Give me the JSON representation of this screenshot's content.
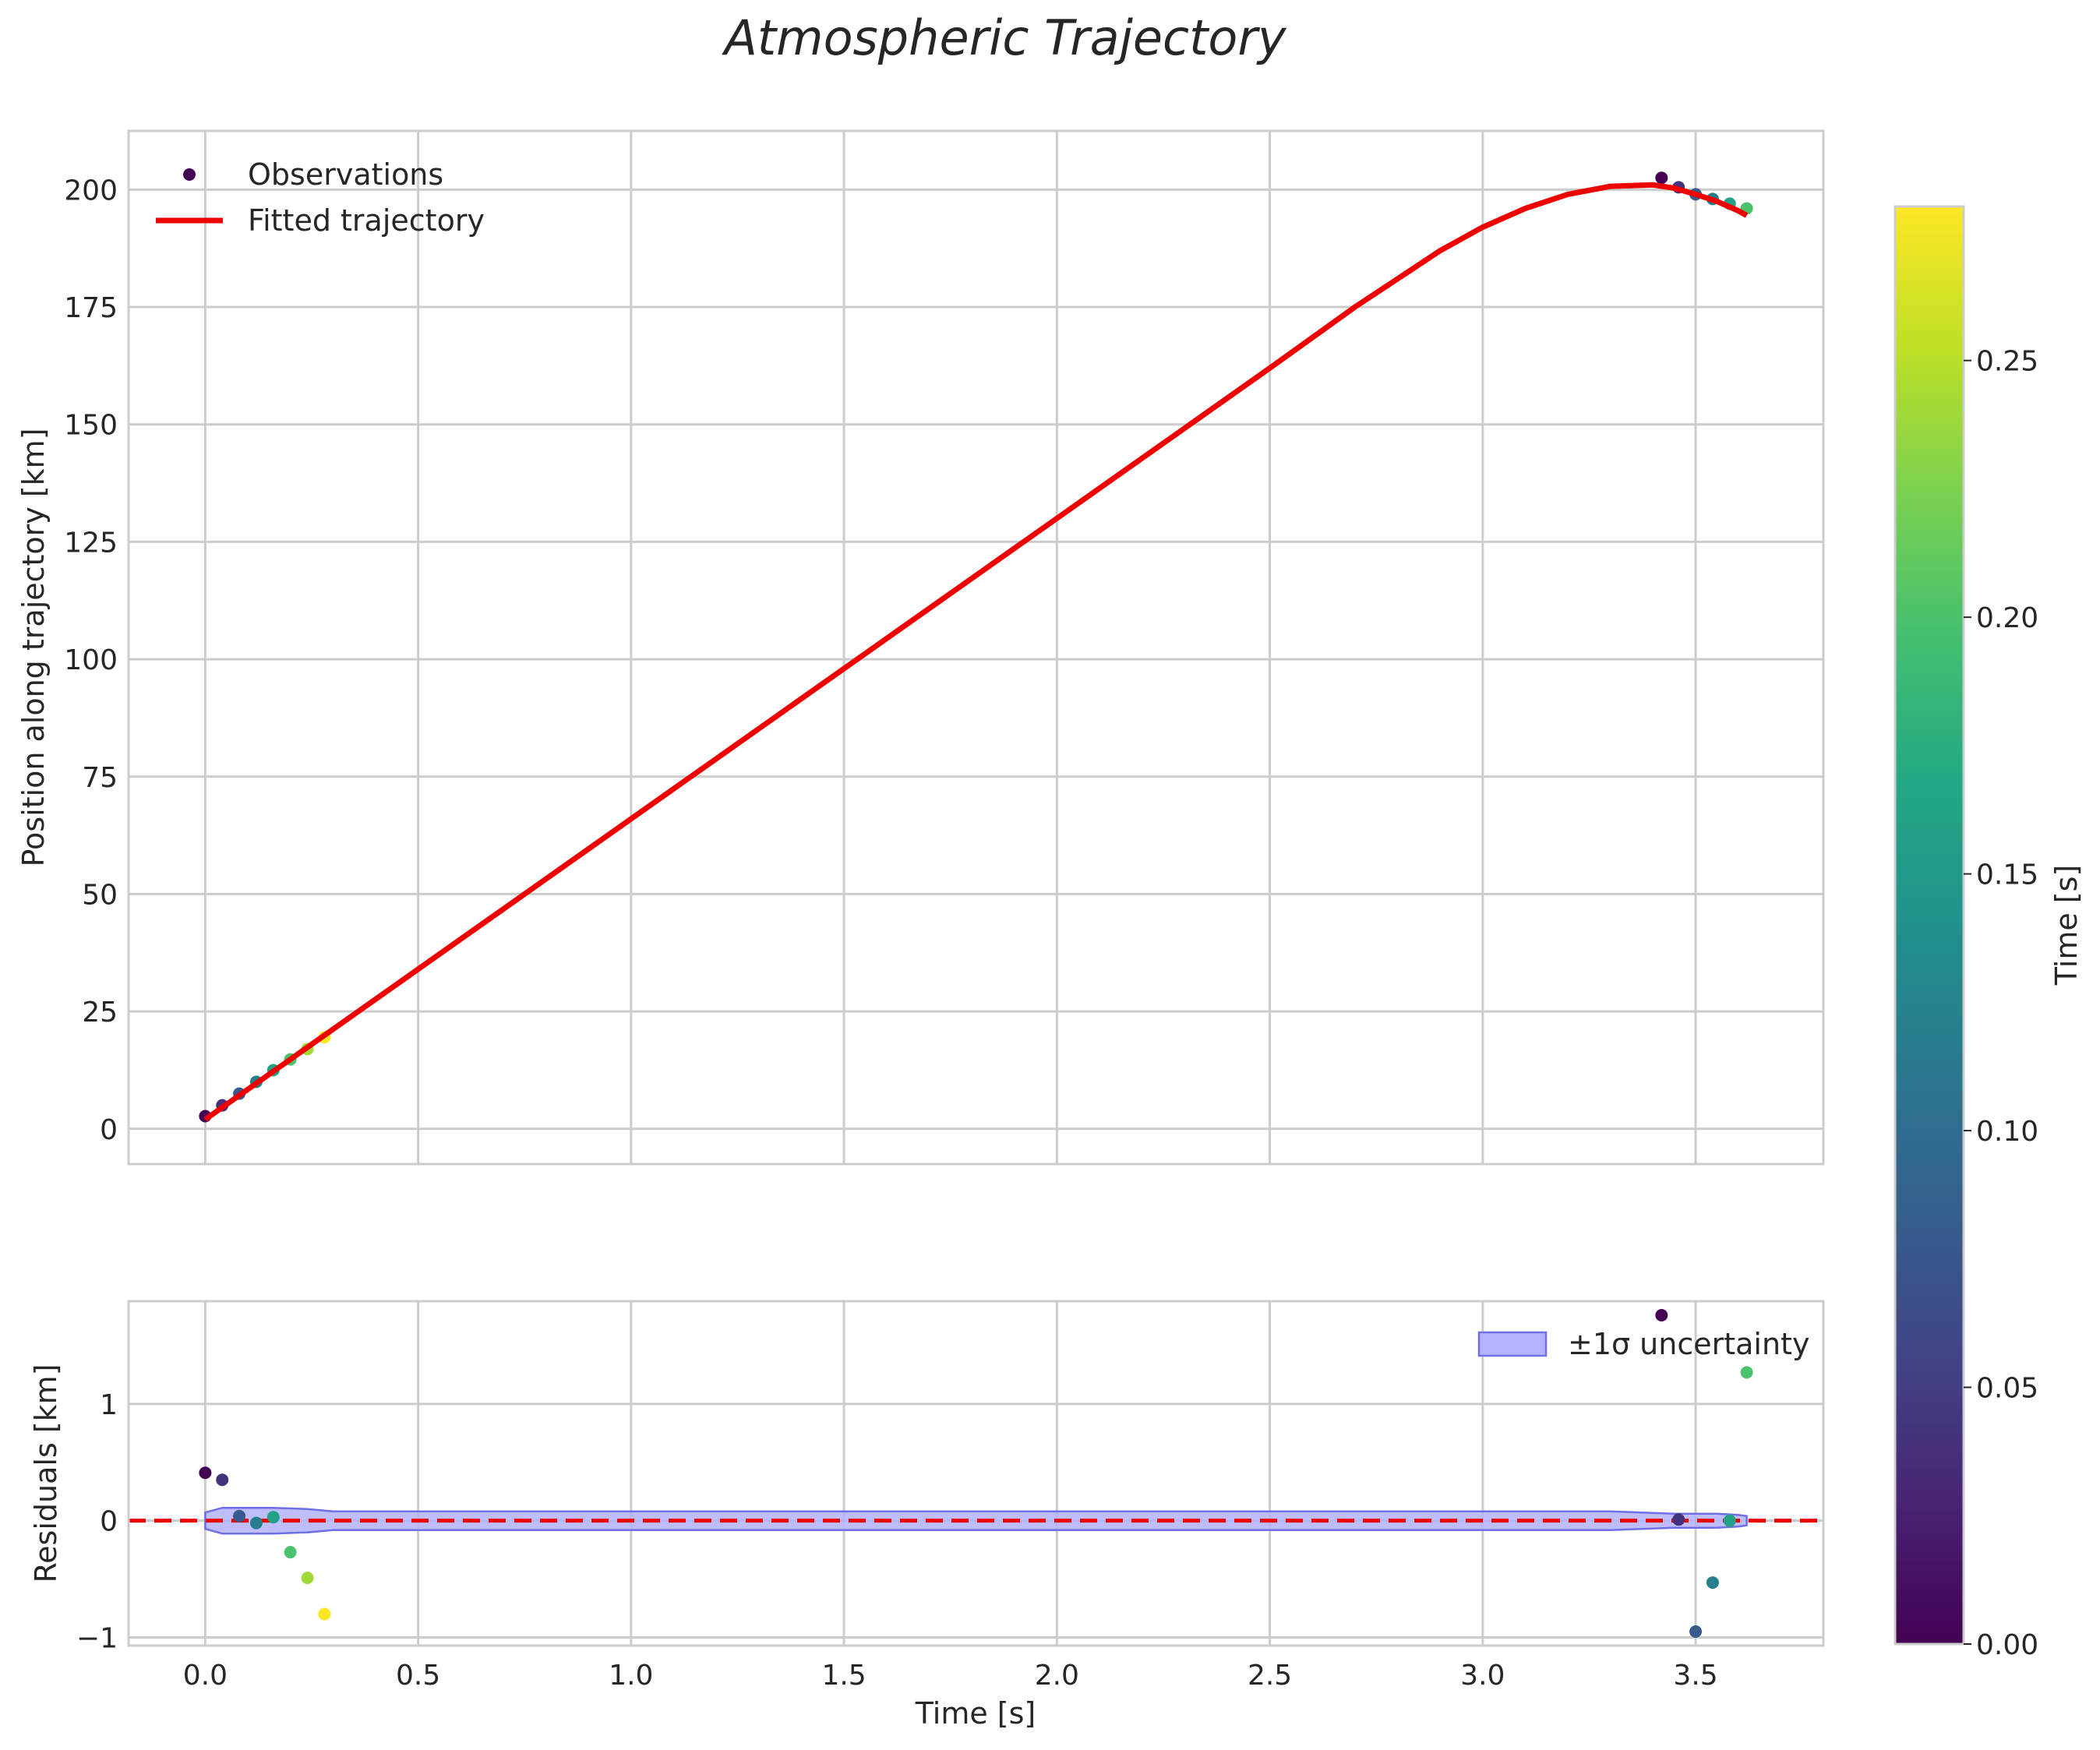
{
  "chart_data": {
    "type": "scatter",
    "title": "Atmospheric Trajectory",
    "colors": {
      "fit": "#ee0000",
      "band_fill": "#b3b3ff",
      "band_edge": "#6f6fe6",
      "grid": "#cccccc",
      "frame": "#cccccc"
    },
    "colormap": [
      "#440154",
      "#482475",
      "#414487",
      "#355f8d",
      "#2a788e",
      "#21918c",
      "#22a884",
      "#44bf70",
      "#7ad151",
      "#bddf26",
      "#fde725"
    ],
    "top": {
      "xlim": [
        -0.18,
        3.8
      ],
      "ylim": [
        -7.5,
        212.5
      ],
      "ylabel": "Position along trajectory [km]",
      "yticks": [
        0,
        25,
        50,
        75,
        100,
        125,
        150,
        175,
        200
      ],
      "ytick_labels": [
        "0",
        "25",
        "50",
        "75",
        "100",
        "125",
        "150",
        "175",
        "200"
      ],
      "legend": {
        "observations": "Observations",
        "fit": "Fitted trajectory",
        "position": "upper left"
      },
      "observations": [
        {
          "t": 0.0,
          "y": 2.7,
          "c": 0.0
        },
        {
          "t": 0.04,
          "y": 5.0,
          "c": 0.04
        },
        {
          "t": 0.08,
          "y": 7.5,
          "c": 0.08
        },
        {
          "t": 0.12,
          "y": 10.0,
          "c": 0.12
        },
        {
          "t": 0.16,
          "y": 12.5,
          "c": 0.16
        },
        {
          "t": 0.2,
          "y": 14.8,
          "c": 0.2
        },
        {
          "t": 0.24,
          "y": 17.0,
          "c": 0.24
        },
        {
          "t": 0.28,
          "y": 19.5,
          "c": 0.28
        },
        {
          "t": 3.42,
          "y": 202.5,
          "c": 0.0
        },
        {
          "t": 3.46,
          "y": 200.5,
          "c": 0.04
        },
        {
          "t": 3.5,
          "y": 199.0,
          "c": 0.08
        },
        {
          "t": 3.54,
          "y": 198.0,
          "c": 0.12
        },
        {
          "t": 3.58,
          "y": 197.0,
          "c": 0.16
        },
        {
          "t": 3.62,
          "y": 196.0,
          "c": 0.2
        }
      ],
      "fit": {
        "t": [
          0.0,
          0.5,
          1.0,
          1.5,
          2.0,
          2.5,
          2.7,
          2.9,
          3.0,
          3.1,
          3.2,
          3.3,
          3.4,
          3.45,
          3.5,
          3.55,
          3.6,
          3.62
        ],
        "y": [
          2.0,
          34.0,
          66.0,
          98.0,
          130.0,
          162.0,
          175.0,
          187.0,
          192.0,
          196.0,
          199.0,
          200.7,
          201.0,
          200.3,
          199.0,
          197.5,
          195.5,
          194.5
        ]
      }
    },
    "bottom": {
      "xlim": [
        -0.18,
        3.8
      ],
      "ylim": [
        -1.07,
        1.88
      ],
      "xlabel": "Time [s]",
      "ylabel": "Residuals [km]",
      "xticks": [
        0.0,
        0.5,
        1.0,
        1.5,
        2.0,
        2.5,
        3.0,
        3.5
      ],
      "xtick_labels": [
        "0.0",
        "0.5",
        "1.0",
        "1.5",
        "2.0",
        "2.5",
        "3.0",
        "3.5"
      ],
      "yticks": [
        -1,
        0,
        1
      ],
      "ytick_labels": [
        "−1",
        "0",
        "1"
      ],
      "legend": {
        "band": "±1σ uncertainty",
        "position": "upper right"
      },
      "residuals": [
        {
          "t": 0.0,
          "r": 0.41,
          "c": 0.0
        },
        {
          "t": 0.04,
          "r": 0.35,
          "c": 0.04
        },
        {
          "t": 0.08,
          "r": 0.04,
          "c": 0.08
        },
        {
          "t": 0.12,
          "r": -0.02,
          "c": 0.12
        },
        {
          "t": 0.16,
          "r": 0.03,
          "c": 0.16
        },
        {
          "t": 0.2,
          "r": -0.27,
          "c": 0.2
        },
        {
          "t": 0.24,
          "r": -0.49,
          "c": 0.24
        },
        {
          "t": 0.28,
          "r": -0.8,
          "c": 0.28
        },
        {
          "t": 3.42,
          "r": 1.76,
          "c": 0.0
        },
        {
          "t": 3.46,
          "r": 0.01,
          "c": 0.04
        },
        {
          "t": 3.5,
          "r": -0.95,
          "c": 0.08
        },
        {
          "t": 3.54,
          "r": -0.53,
          "c": 0.12
        },
        {
          "t": 3.58,
          "r": 0.0,
          "c": 0.16
        },
        {
          "t": 3.62,
          "r": 1.27,
          "c": 0.2
        }
      ],
      "band": {
        "t": [
          0.0,
          0.04,
          0.16,
          0.24,
          0.3,
          3.3,
          3.45,
          3.55,
          3.6,
          3.62
        ],
        "sigma": [
          0.07,
          0.11,
          0.11,
          0.1,
          0.08,
          0.08,
          0.06,
          0.06,
          0.05,
          0.04
        ]
      },
      "zero_line": 0
    },
    "colorbar": {
      "label": "Time [s]",
      "range": [
        0.0,
        0.28
      ],
      "ticks": [
        0.0,
        0.05,
        0.1,
        0.15,
        0.2,
        0.25
      ],
      "tick_labels": [
        "0.00",
        "0.05",
        "0.10",
        "0.15",
        "0.20",
        "0.25"
      ]
    }
  }
}
